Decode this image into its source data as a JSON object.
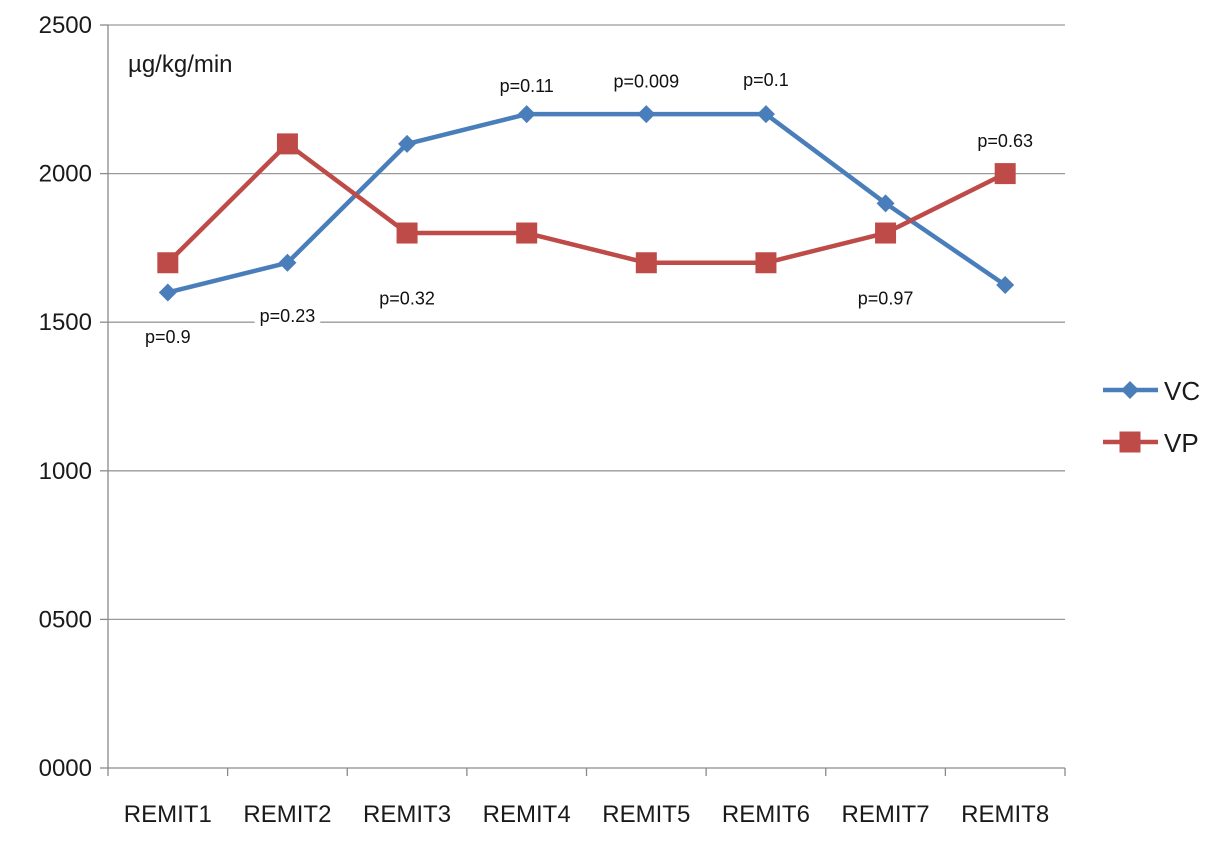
{
  "chart_data": {
    "type": "line",
    "categories": [
      "REMIT1",
      "REMIT2",
      "REMIT3",
      "REMIT4",
      "REMIT5",
      "REMIT6",
      "REMIT7",
      "REMIT8"
    ],
    "series": [
      {
        "name": "VC",
        "color": "#4a7ebb",
        "marker": "diamond",
        "values": [
          1600,
          1700,
          2100,
          2200,
          2200,
          2200,
          1900,
          1625
        ]
      },
      {
        "name": "VP",
        "color": "#be4b48",
        "marker": "square",
        "values": [
          1700,
          2100,
          1800,
          1800,
          1700,
          1700,
          1800,
          2000
        ]
      }
    ],
    "y_ticks": [
      "0000",
      "0500",
      "1000",
      "1500",
      "2000",
      "2500"
    ],
    "ylim": [
      0,
      2500
    ],
    "ylabel": "µg/kg/min",
    "grid": "horizontal",
    "legend_position": "right",
    "annotations": [
      {
        "text": "p=0.9",
        "category": "REMIT1",
        "y": 1430
      },
      {
        "text": "p=0.23",
        "category": "REMIT2",
        "y": 1500
      },
      {
        "text": "p=0.32",
        "category": "REMIT3",
        "y": 1560
      },
      {
        "text": "p=0.11",
        "category": "REMIT4",
        "y": 2275
      },
      {
        "text": "p=0.009",
        "category": "REMIT5",
        "y": 2290
      },
      {
        "text": "p=0.1",
        "category": "REMIT6",
        "y": 2295
      },
      {
        "text": "p=0.97",
        "category": "REMIT7",
        "y": 1560
      },
      {
        "text": "p=0.63",
        "category": "REMIT8",
        "y": 2090
      }
    ]
  }
}
